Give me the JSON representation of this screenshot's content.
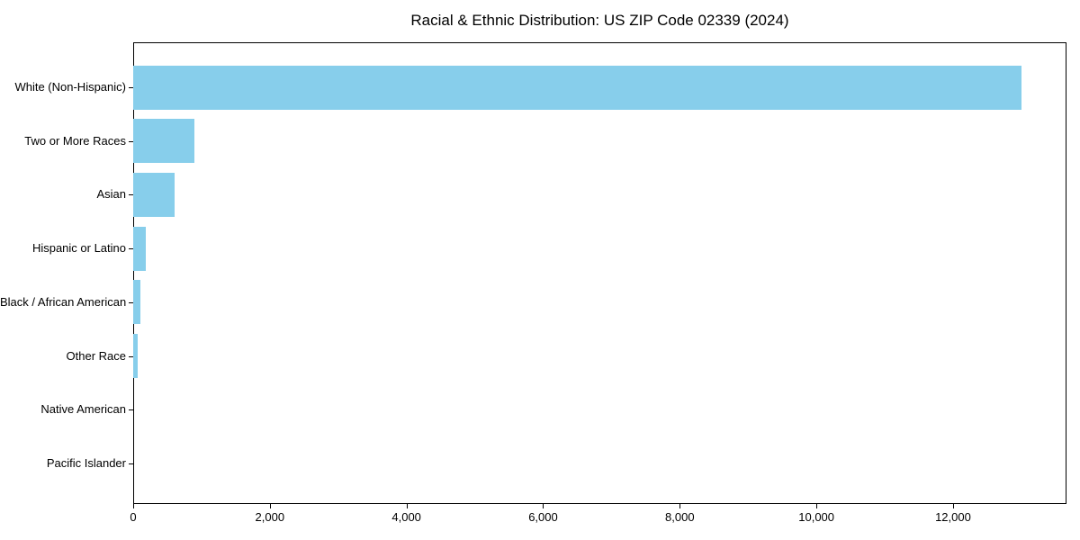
{
  "page": {
    "background": "#ffffff"
  },
  "chart_data": {
    "type": "bar",
    "orientation": "horizontal",
    "title": "Racial & Ethnic Distribution: US ZIP Code 02339 (2024)",
    "categories": [
      "White (Non-Hispanic)",
      "Two or More Races",
      "Asian",
      "Hispanic or Latino",
      "Black / African American",
      "Other Race",
      "Native American",
      "Pacific Islander"
    ],
    "values": [
      13000,
      890,
      600,
      180,
      110,
      70,
      0,
      0
    ],
    "xlabel": "",
    "ylabel": "",
    "xlim": [
      0,
      13660
    ],
    "x_ticks": [
      0,
      2000,
      4000,
      6000,
      8000,
      10000,
      12000
    ],
    "x_tick_labels": [
      "0",
      "2,000",
      "4,000",
      "6,000",
      "8,000",
      "10,000",
      "12,000"
    ],
    "bar_color": "#87CEEB",
    "axis_color": "#000000",
    "grid": false,
    "legend": false
  }
}
